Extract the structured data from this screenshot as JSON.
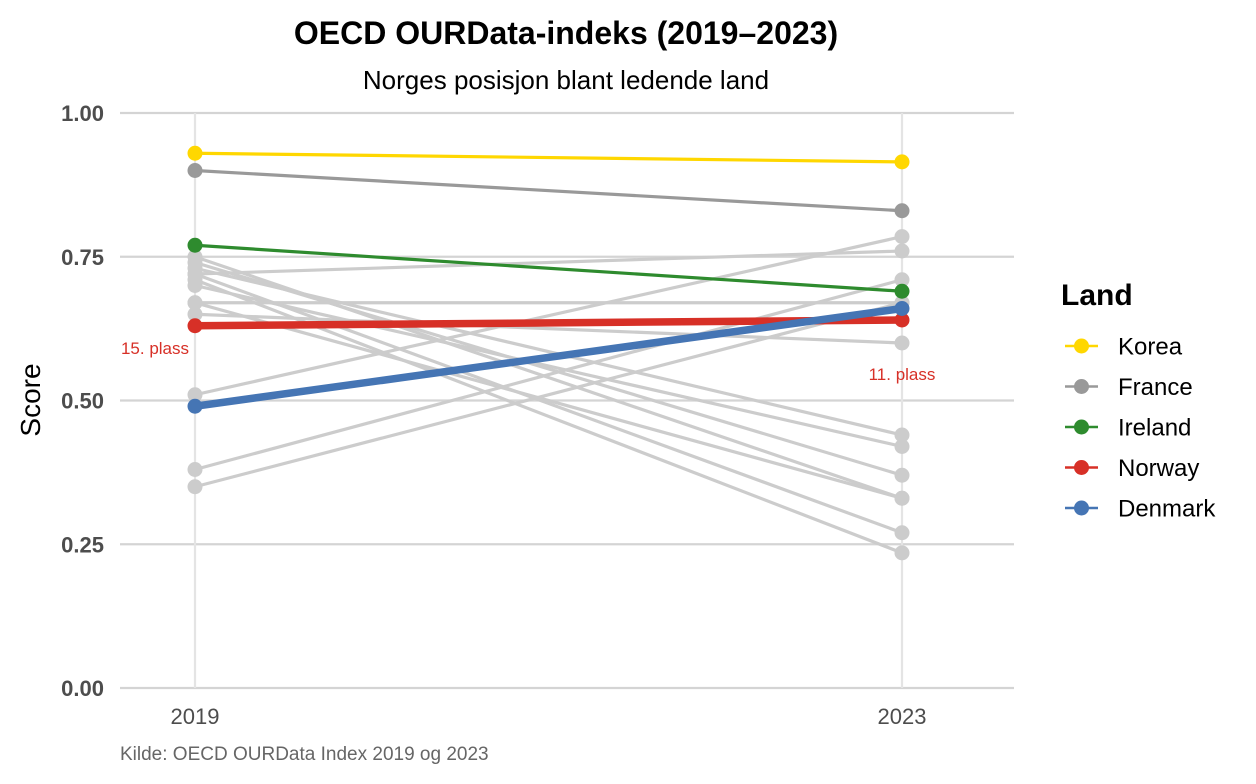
{
  "chart_data": {
    "type": "line",
    "title": "OECD OURData-indeks (2019–2023)",
    "subtitle": "Norges posisjon blant ledende land",
    "xlabel": "",
    "ylabel": "Score",
    "caption": "Kilde: OECD OURData Index 2019 og 2023",
    "x": [
      "2019",
      "2023"
    ],
    "ylim": [
      0,
      1
    ],
    "yticks": [
      "0.00",
      "0.25",
      "0.50",
      "0.75",
      "1.00"
    ],
    "grid": true,
    "legend": {
      "title": "Land",
      "position": "right",
      "entries": [
        "Korea",
        "France",
        "Ireland",
        "Norway",
        "Denmark"
      ]
    },
    "background_series": [
      [
        0.75,
        0.33
      ],
      [
        0.73,
        0.44
      ],
      [
        0.72,
        0.27
      ],
      [
        0.71,
        0.235
      ],
      [
        0.7,
        0.42
      ],
      [
        0.67,
        0.33
      ],
      [
        0.65,
        0.6
      ],
      [
        0.74,
        0.37
      ],
      [
        0.72,
        0.76
      ],
      [
        0.51,
        0.785
      ],
      [
        0.38,
        0.71
      ],
      [
        0.35,
        0.67
      ],
      [
        0.67,
        0.67
      ]
    ],
    "background_color": "#cccccc",
    "series": [
      {
        "name": "Korea",
        "values": [
          0.93,
          0.915
        ],
        "color": "#FFD700"
      },
      {
        "name": "France",
        "values": [
          0.9,
          0.83
        ],
        "color": "#999999"
      },
      {
        "name": "Ireland",
        "values": [
          0.77,
          0.69
        ],
        "color": "#2E8B2E"
      },
      {
        "name": "Norway",
        "values": [
          0.63,
          0.64
        ],
        "color": "#D73027",
        "highlight": true
      },
      {
        "name": "Denmark",
        "values": [
          0.49,
          0.66
        ],
        "color": "#4575B4",
        "highlight": true
      }
    ],
    "annotations": [
      {
        "text": "15. plass",
        "x": "2019",
        "series": "Norway",
        "color": "#D73027"
      },
      {
        "text": "11. plass",
        "x": "2023",
        "series": "Norway",
        "color": "#D73027"
      }
    ]
  }
}
